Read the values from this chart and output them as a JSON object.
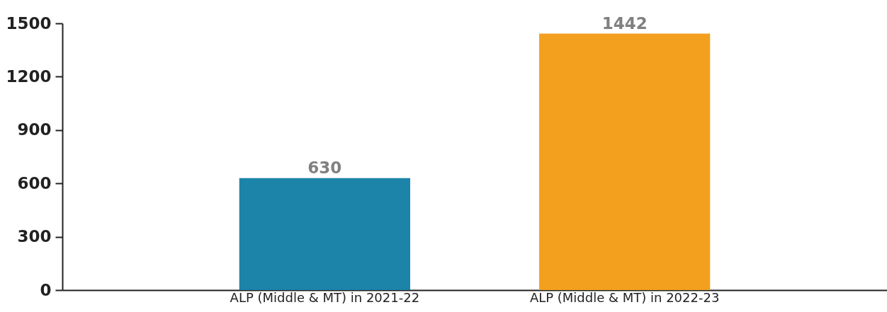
{
  "chart_data": {
    "type": "bar",
    "categories": [
      "ALP (Middle & MT) in 2021-22",
      "ALP (Middle & MT) in 2022-23"
    ],
    "values": [
      630,
      1442
    ],
    "colors": [
      "#1b84a8",
      "#f3a01f"
    ],
    "ylim": [
      0,
      1500
    ],
    "yticks": [
      0,
      300,
      600,
      900,
      1200,
      1500
    ],
    "data_labels": true,
    "grid": false
  }
}
